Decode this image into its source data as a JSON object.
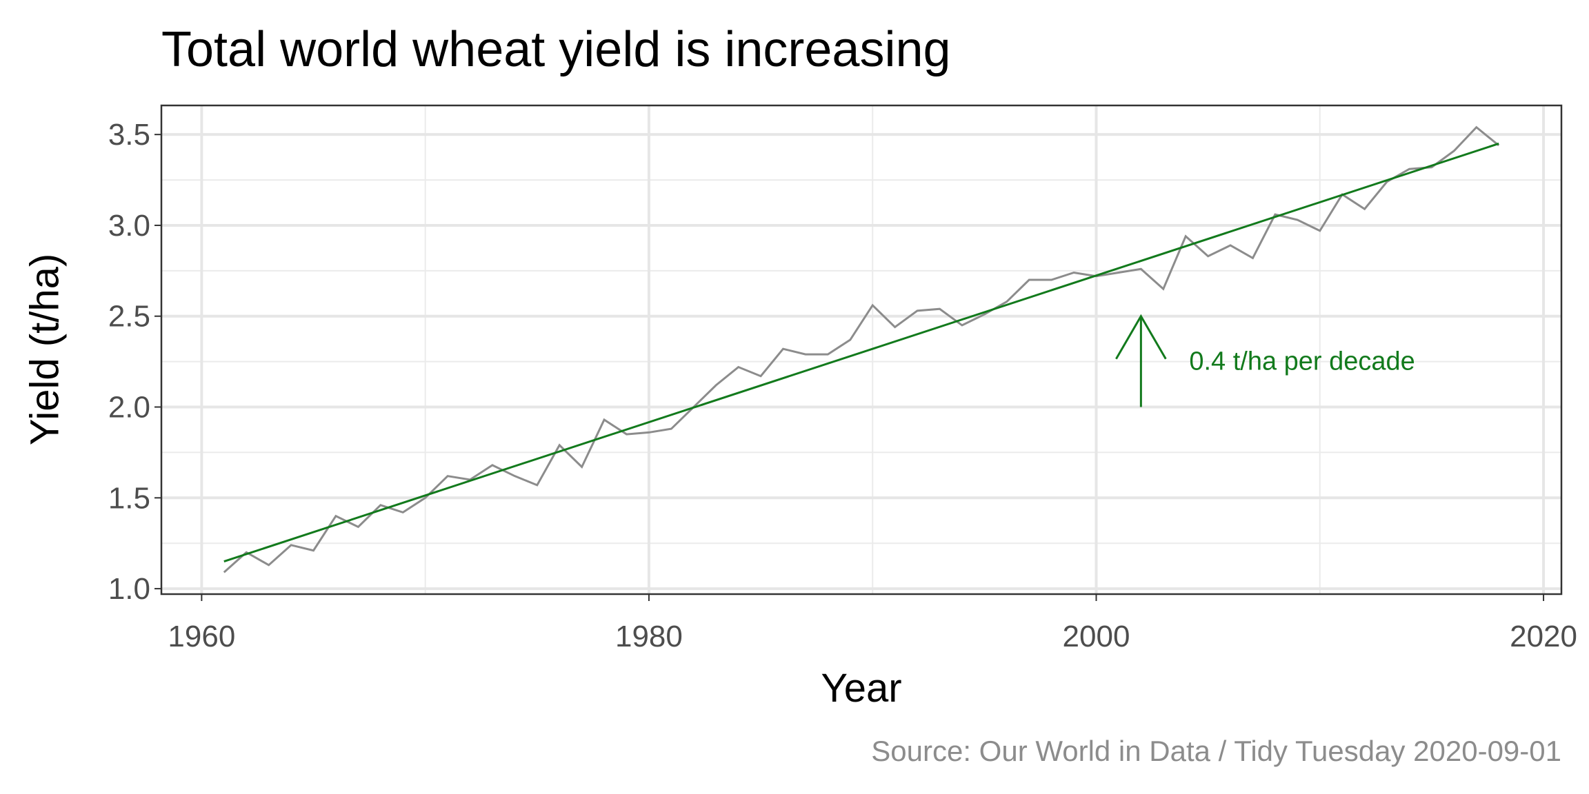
{
  "chart_data": {
    "type": "line",
    "title": "Total world wheat yield is increasing",
    "caption": "Source: Our World in Data / Tidy Tuesday 2020-09-01",
    "x_label": "Year",
    "y_label": "Yield (t/ha)",
    "x": [
      1961,
      1962,
      1963,
      1964,
      1965,
      1966,
      1967,
      1968,
      1969,
      1970,
      1971,
      1972,
      1973,
      1974,
      1975,
      1976,
      1977,
      1978,
      1979,
      1980,
      1981,
      1982,
      1983,
      1984,
      1985,
      1986,
      1987,
      1988,
      1989,
      1990,
      1991,
      1992,
      1993,
      1994,
      1995,
      1996,
      1997,
      1998,
      1999,
      2000,
      2001,
      2002,
      2003,
      2004,
      2005,
      2006,
      2007,
      2008,
      2009,
      2010,
      2011,
      2012,
      2013,
      2014,
      2015,
      2016,
      2017,
      2018
    ],
    "values": [
      1.09,
      1.2,
      1.13,
      1.24,
      1.21,
      1.4,
      1.34,
      1.46,
      1.42,
      1.5,
      1.62,
      1.6,
      1.68,
      1.62,
      1.57,
      1.79,
      1.67,
      1.93,
      1.85,
      1.86,
      1.88,
      2.0,
      2.12,
      2.22,
      2.17,
      2.32,
      2.29,
      2.29,
      2.37,
      2.56,
      2.44,
      2.53,
      2.54,
      2.45,
      2.51,
      2.58,
      2.7,
      2.7,
      2.74,
      2.72,
      2.74,
      2.76,
      2.65,
      2.94,
      2.83,
      2.89,
      2.82,
      3.06,
      3.03,
      2.97,
      3.17,
      3.09,
      3.24,
      3.31,
      3.32,
      3.41,
      3.54,
      3.44
    ],
    "color": "#8c8c8c",
    "trend": {
      "x": [
        1961,
        2018
      ],
      "values": [
        1.15,
        3.45
      ],
      "color": "#127a1c"
    },
    "annotation": {
      "text": "0.4 t/ha per decade",
      "x": 2002,
      "y_start": 2.0,
      "y_end": 2.5,
      "color": "#127a1c"
    },
    "xlim": [
      1958.2,
      2020.8
    ],
    "ylim": [
      0.97,
      3.66
    ],
    "xticks": [
      1960,
      1980,
      2000,
      2020
    ],
    "yticks": [
      {
        "value": 1.0,
        "label": "1.0"
      },
      1.5,
      {
        "value": 2.0,
        "label": "2.0"
      },
      2.5,
      {
        "value": 3.0,
        "label": "3.0"
      },
      3.5
    ],
    "grid": true
  }
}
